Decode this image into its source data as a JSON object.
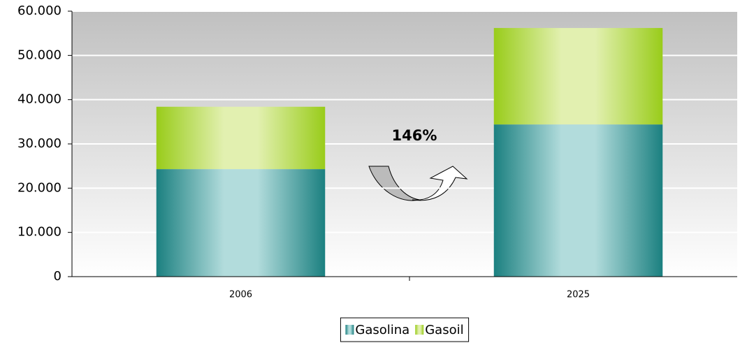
{
  "chart_data": {
    "type": "stacked_bar",
    "categories": [
      "2006",
      "2025"
    ],
    "series": [
      {
        "name": "Gasolina",
        "color": "#1b8080",
        "values": [
          24300,
          34400
        ]
      },
      {
        "name": "Gasoil",
        "color": "#99cc1a",
        "values": [
          14100,
          21800
        ]
      }
    ],
    "annotations": [
      "146%"
    ],
    "ylim": [
      0,
      60000
    ],
    "yticks": [
      0,
      {
        "value": 10000,
        "label": "10.000"
      },
      {
        "value": 20000,
        "label": "20.000"
      },
      {
        "value": 30000,
        "label": "30.000"
      },
      {
        "value": 40000,
        "label": "40.000"
      },
      {
        "value": 50000,
        "label": "50.000"
      },
      {
        "value": 60000,
        "label": "60.000"
      }
    ],
    "grid": true,
    "legend": "bottom"
  }
}
